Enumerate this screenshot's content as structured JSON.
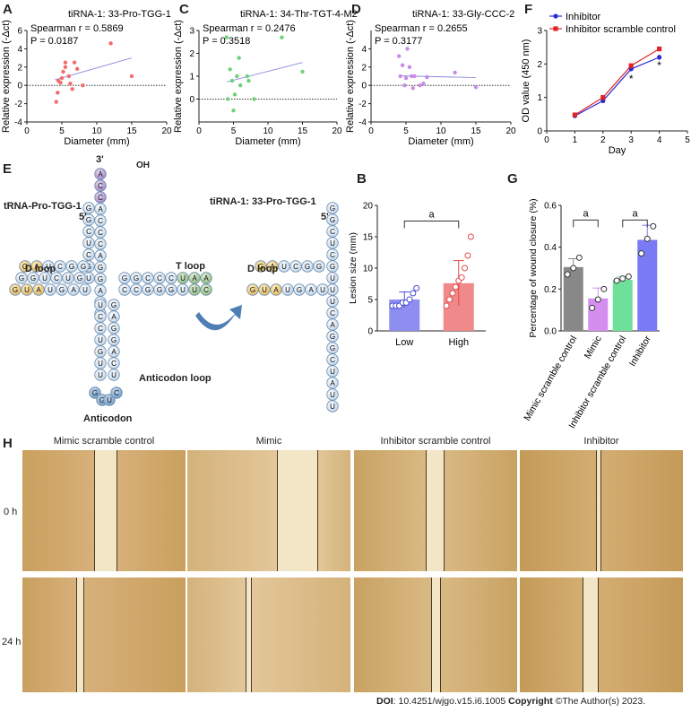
{
  "panels": {
    "A": "A",
    "C": "C",
    "D": "D",
    "F": "F",
    "E": "E",
    "B": "B",
    "G": "G",
    "H": "H"
  },
  "chart_data": [
    {
      "id": "A",
      "type": "scatter",
      "title": "tiRNA-1: 33-Pro-TGG-1",
      "stat_line1": "Spearman r = 0.5869",
      "stat_line2": "P = 0.0187",
      "xlabel": "Diameter (mm)",
      "ylabel": "Relative expression (-Δct)",
      "xlim": [
        0,
        20
      ],
      "ylim": [
        -4,
        6
      ],
      "xticks": [
        0,
        5,
        10,
        15,
        20
      ],
      "yticks": [
        -4,
        -2,
        0,
        2,
        4,
        6
      ],
      "color": "#f26c6c",
      "points": [
        [
          4.2,
          -1.8
        ],
        [
          4.4,
          -0.8
        ],
        [
          4.5,
          0.5
        ],
        [
          4.8,
          0.3
        ],
        [
          5.0,
          0.8
        ],
        [
          5.2,
          1.5
        ],
        [
          5.5,
          2.5
        ],
        [
          5.5,
          2.0
        ],
        [
          6.0,
          1.0
        ],
        [
          6.2,
          0.2
        ],
        [
          6.5,
          -0.4
        ],
        [
          6.8,
          2.5
        ],
        [
          7.2,
          1.8
        ],
        [
          8.0,
          0.0
        ],
        [
          12.0,
          4.6
        ],
        [
          15.0,
          1.0
        ]
      ],
      "fit": [
        [
          4,
          0.6
        ],
        [
          15,
          3.0
        ]
      ]
    },
    {
      "id": "C",
      "type": "scatter",
      "title": "tiRNA-1: 34-Thr-TGT-4-M2",
      "stat_line1": "Spearman r = 0.2476",
      "stat_line2": "P = 0.3518",
      "xlabel": "Diameter (mm)",
      "ylabel": "Relative expression (-Δct)",
      "xlim": [
        0,
        20
      ],
      "ylim": [
        -1,
        3
      ],
      "xticks": [
        0,
        5,
        10,
        15,
        20
      ],
      "yticks": [
        0,
        1,
        2,
        3
      ],
      "color": "#6fd17a",
      "points": [
        [
          4.0,
          2.7
        ],
        [
          4.2,
          0.0
        ],
        [
          4.5,
          1.3
        ],
        [
          4.8,
          0.8
        ],
        [
          5.0,
          -0.5
        ],
        [
          5.2,
          0.2
        ],
        [
          5.5,
          1.0
        ],
        [
          5.8,
          1.8
        ],
        [
          6.0,
          0.6
        ],
        [
          7.0,
          1.0
        ],
        [
          7.2,
          0.8
        ],
        [
          8.0,
          0.0
        ],
        [
          12.0,
          2.7
        ],
        [
          15.0,
          1.2
        ]
      ],
      "fit": [
        [
          4,
          0.75
        ],
        [
          15,
          1.6
        ]
      ]
    },
    {
      "id": "D",
      "type": "scatter",
      "title": "tiRNA-1: 33-Gly-CCC-2",
      "stat_line1": "Spearman r = 0.2655",
      "stat_line2": "P = 0.3177",
      "xlabel": "Diameter (mm)",
      "ylabel": "Relative expression (-Δct)",
      "xlim": [
        0,
        20
      ],
      "ylim": [
        -4,
        6
      ],
      "xticks": [
        0,
        5,
        10,
        15,
        20
      ],
      "yticks": [
        -4,
        -2,
        0,
        2,
        4
      ],
      "color": "#c88be6",
      "points": [
        [
          4.0,
          3.2
        ],
        [
          4.2,
          1.0
        ],
        [
          4.5,
          2.2
        ],
        [
          4.8,
          0.0
        ],
        [
          5.0,
          0.8
        ],
        [
          5.2,
          4.0
        ],
        [
          5.5,
          2.0
        ],
        [
          5.8,
          1.0
        ],
        [
          6.0,
          -0.3
        ],
        [
          6.2,
          1.0
        ],
        [
          7.0,
          0.0
        ],
        [
          7.5,
          0.2
        ],
        [
          8.0,
          0.9
        ],
        [
          12.0,
          1.4
        ],
        [
          15.0,
          -0.2
        ]
      ],
      "fit": [
        [
          4,
          1.05
        ],
        [
          15,
          0.85
        ]
      ]
    },
    {
      "id": "F",
      "type": "line",
      "xlabel": "Day",
      "ylabel": "OD value (450 nm)",
      "xlim": [
        0,
        5
      ],
      "ylim": [
        0,
        3
      ],
      "xticks": [
        0,
        1,
        2,
        3,
        4,
        5
      ],
      "yticks": [
        0,
        1,
        2,
        3
      ],
      "x": [
        1,
        2,
        3,
        4
      ],
      "series": [
        {
          "name": "Inhibitor",
          "color": "#2b2bd6",
          "values": [
            0.45,
            0.9,
            1.85,
            2.2
          ],
          "err": [
            0.03,
            0.05,
            0.06,
            0.08
          ]
        },
        {
          "name": "Inhibitor scramble control",
          "color": "#e02424",
          "values": [
            0.48,
            1.0,
            1.95,
            2.45
          ],
          "err": [
            0.03,
            0.06,
            0.05,
            0.07
          ]
        }
      ],
      "annotations": [
        {
          "x": 3,
          "y": 1.45,
          "text": "*"
        },
        {
          "x": 4,
          "y": 1.85,
          "text": "*"
        }
      ]
    },
    {
      "id": "B",
      "type": "bar",
      "ylabel": "Lesion size (mm)",
      "ylim": [
        0,
        20
      ],
      "yticks": [
        0,
        5,
        10,
        15,
        20
      ],
      "categories": [
        "Low",
        "High"
      ],
      "values": [
        5.0,
        7.6
      ],
      "err": [
        1.2,
        3.6
      ],
      "fill": [
        "#8e8ef0",
        "#f08a8a"
      ],
      "dot": [
        "#ffffff",
        "#ffffff"
      ],
      "dot_stroke": [
        "#4b4bd6",
        "#e04c4c"
      ],
      "points": [
        [
          4.0,
          4.0,
          4.0,
          4.5,
          4.5,
          5.0,
          6.0,
          6.8
        ],
        [
          4.0,
          5.0,
          6.0,
          7.0,
          8.0,
          8.5,
          10.0,
          12.0,
          15.0
        ]
      ],
      "bracket": {
        "from": 0,
        "to": 1,
        "y": 17.5,
        "text": "a"
      }
    },
    {
      "id": "G",
      "type": "bar",
      "ylabel": "Percentage of wound closure (%)",
      "ylim": [
        0,
        0.6
      ],
      "yticks": [
        0.0,
        0.2,
        0.4,
        0.6
      ],
      "categories": [
        "Mimic scramble control",
        "Mimic",
        "Inhibitor scramble control",
        "Inhibitor"
      ],
      "values": [
        0.305,
        0.155,
        0.245,
        0.435
      ],
      "err": [
        0.04,
        0.05,
        0.015,
        0.07
      ],
      "fill": [
        "#888888",
        "#d48ef0",
        "#6fe09a",
        "#7a7af5"
      ],
      "points": [
        [
          0.27,
          0.3,
          0.35
        ],
        [
          0.11,
          0.15,
          0.2
        ],
        [
          0.24,
          0.25,
          0.26
        ],
        [
          0.37,
          0.44,
          0.5
        ]
      ],
      "brackets": [
        {
          "from": 0,
          "to": 1,
          "y": 0.53,
          "text": "a"
        },
        {
          "from": 2,
          "to": 3,
          "y": 0.53,
          "text": "a"
        }
      ]
    }
  ],
  "diagram_E": {
    "left_title": "tRNA-Pro-TGG-1",
    "right_title": "tiRNA-1: 33-Pro-TGG-1",
    "three_prime": "3'",
    "oh": "OH",
    "five_prime": "5'",
    "five_prime_right": "5'",
    "d_loop": "D loop",
    "d_loop_right": "D loop",
    "t_loop": "T loop",
    "anticodon_loop": "Anticodon loop",
    "anticodon": "Anticodon",
    "acceptor_3": [
      "A",
      "C",
      "C",
      "A",
      "C",
      "C",
      "C",
      "A",
      "G",
      "G",
      "A",
      "U",
      "U"
    ],
    "acceptor_5": [
      "G",
      "G",
      "C",
      "U",
      "C",
      "G",
      "U"
    ],
    "right_5_stem": [
      "G",
      "G",
      "C",
      "U",
      "C",
      "G",
      "U"
    ]
  },
  "wound_panel": {
    "columns": [
      "Mimic scramble control",
      "Mimic",
      "Inhibitor scramble control",
      "Inhibitor"
    ],
    "rows": [
      "0 h",
      "24 h"
    ]
  },
  "footer": {
    "doi_label": "DOI",
    "doi_text": ": 10.4251/wjgo.v15.i6.1005 ",
    "copyright_label": "Copyright",
    "copyright_text": " ©The Author(s) 2023."
  }
}
